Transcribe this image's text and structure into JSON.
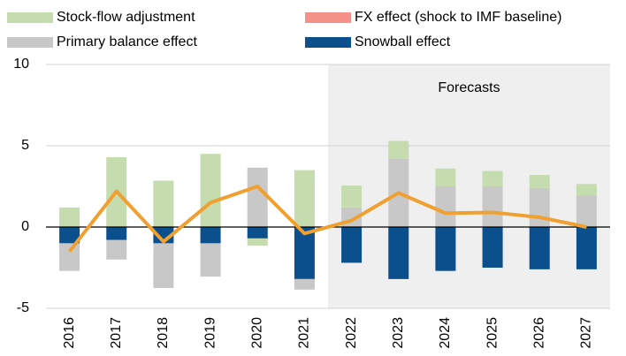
{
  "chart_data": {
    "type": "bar",
    "categories": [
      "2016",
      "2017",
      "2018",
      "2019",
      "2020",
      "2021",
      "2022",
      "2023",
      "2024",
      "2025",
      "2026",
      "2027"
    ],
    "series": [
      {
        "name": "Stock-flow adjustment",
        "color": "#c5dcaf",
        "values": [
          1.2,
          4.3,
          2.85,
          4.5,
          -0.45,
          3.5,
          1.35,
          1.1,
          1.1,
          0.95,
          0.8,
          0.7
        ]
      },
      {
        "name": "FX effect (shock to IMF baseline)",
        "color": "#f4928a",
        "values": [
          0,
          0,
          0,
          0,
          0,
          0,
          0,
          0,
          0,
          0,
          0,
          0
        ]
      },
      {
        "name": "Primary balance effect",
        "color": "#c8c8c8",
        "values": [
          -1.7,
          -1.2,
          -2.75,
          -2.05,
          3.65,
          -0.65,
          1.2,
          4.2,
          2.5,
          2.5,
          2.4,
          1.95
        ]
      },
      {
        "name": "Snowball effect",
        "color": "#0b4f8c",
        "values": [
          -1.0,
          -0.8,
          -1.0,
          -1.0,
          -0.7,
          -3.2,
          -2.2,
          -3.2,
          -2.7,
          -2.5,
          -2.6,
          -2.6
        ]
      },
      {
        "type": "line",
        "color": "#f0a030",
        "values": [
          -1.5,
          2.2,
          -0.9,
          1.5,
          2.5,
          -0.4,
          0.4,
          2.1,
          0.85,
          0.9,
          0.6,
          0.0
        ]
      }
    ],
    "ylim": [
      -5,
      10
    ],
    "yticks": [
      -5,
      0,
      5,
      10
    ],
    "grid": true,
    "annotations": [
      {
        "text": "Forecasts",
        "from": "2022",
        "to": "2027",
        "color": "#efefef"
      }
    ]
  }
}
